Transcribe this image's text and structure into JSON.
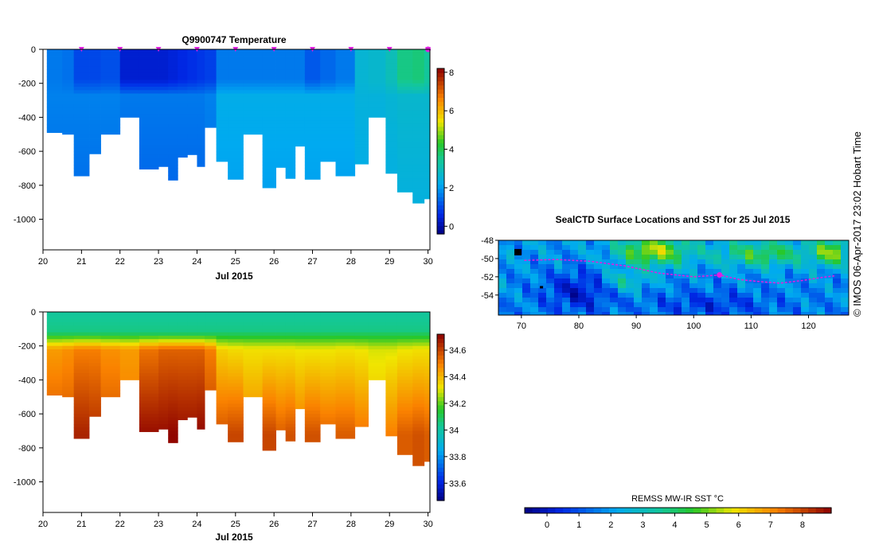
{
  "page": {
    "credit": "© IMOS 06-Apr-2017 23:02 Hobart Time"
  },
  "chart_data": [
    {
      "id": "temperature-section",
      "type": "heatmap",
      "title": "Q9900747  Temperature",
      "xlabel": "Jul 2015",
      "ylabel": "",
      "x_ticks": [
        "20",
        "21",
        "22",
        "23",
        "24",
        "25",
        "26",
        "27",
        "28",
        "29",
        "30"
      ],
      "xlim": [
        20,
        30.05
      ],
      "y_ticks": [
        "0",
        "-200",
        "-400",
        "-600",
        "-800",
        "-1000"
      ],
      "ylim": [
        -1180,
        0
      ],
      "profile_marker_days": [
        21,
        22,
        23,
        24,
        25,
        26,
        27,
        28,
        29,
        30
      ],
      "colorbar": {
        "min": -0.4,
        "max": 8.2,
        "ticks": [
          "0",
          "2",
          "4",
          "6",
          "8"
        ]
      },
      "profiles": [
        {
          "start": 20.1,
          "end": 20.5,
          "depth": 490,
          "v0": 1.6,
          "v600": 1.7
        },
        {
          "start": 20.5,
          "end": 20.8,
          "depth": 500,
          "v0": 1.5,
          "v600": 1.7
        },
        {
          "start": 20.8,
          "end": 21.2,
          "depth": 745,
          "v0": 1.0,
          "v600": 1.7
        },
        {
          "start": 21.2,
          "end": 21.5,
          "depth": 615,
          "v0": 1.0,
          "v600": 1.7
        },
        {
          "start": 21.5,
          "end": 22.0,
          "depth": 500,
          "v0": 1.1,
          "v600": 1.7
        },
        {
          "start": 22.0,
          "end": 22.5,
          "depth": 400,
          "v0": 0.4,
          "v600": 1.6
        },
        {
          "start": 22.5,
          "end": 23.0,
          "depth": 705,
          "v0": 0.4,
          "v600": 1.6
        },
        {
          "start": 23.0,
          "end": 23.25,
          "depth": 690,
          "v0": 0.4,
          "v600": 1.6
        },
        {
          "start": 23.25,
          "end": 23.5,
          "depth": 770,
          "v0": 0.5,
          "v600": 1.6
        },
        {
          "start": 23.5,
          "end": 23.75,
          "depth": 635,
          "v0": 0.6,
          "v600": 1.6
        },
        {
          "start": 23.75,
          "end": 24.0,
          "depth": 620,
          "v0": 0.7,
          "v600": 1.6
        },
        {
          "start": 24.0,
          "end": 24.2,
          "depth": 690,
          "v0": 0.8,
          "v600": 1.6
        },
        {
          "start": 24.2,
          "end": 24.5,
          "depth": 460,
          "v0": 0.9,
          "v600": 1.7
        },
        {
          "start": 24.5,
          "end": 24.8,
          "depth": 660,
          "v0": 1.6,
          "v600": 2.3
        },
        {
          "start": 24.8,
          "end": 25.2,
          "depth": 765,
          "v0": 1.6,
          "v600": 2.3
        },
        {
          "start": 25.2,
          "end": 25.7,
          "depth": 500,
          "v0": 1.6,
          "v600": 2.3
        },
        {
          "start": 25.7,
          "end": 26.05,
          "depth": 815,
          "v0": 1.6,
          "v600": 2.3
        },
        {
          "start": 26.05,
          "end": 26.3,
          "depth": 695,
          "v0": 1.6,
          "v600": 2.3
        },
        {
          "start": 26.3,
          "end": 26.55,
          "depth": 760,
          "v0": 1.6,
          "v600": 2.3
        },
        {
          "start": 26.55,
          "end": 26.8,
          "depth": 570,
          "v0": 1.6,
          "v600": 2.3
        },
        {
          "start": 26.8,
          "end": 27.2,
          "depth": 765,
          "v0": 1.2,
          "v600": 2.3
        },
        {
          "start": 27.2,
          "end": 27.6,
          "depth": 660,
          "v0": 1.4,
          "v600": 2.3
        },
        {
          "start": 27.6,
          "end": 28.1,
          "depth": 745,
          "v0": 1.6,
          "v600": 2.3
        },
        {
          "start": 28.1,
          "end": 28.45,
          "depth": 675,
          "v0": 2.6,
          "v600": 2.5
        },
        {
          "start": 28.45,
          "end": 28.9,
          "depth": 400,
          "v0": 2.7,
          "v600": 2.5
        },
        {
          "start": 28.9,
          "end": 29.2,
          "depth": 730,
          "v0": 3.0,
          "v600": 2.6
        },
        {
          "start": 29.2,
          "end": 29.6,
          "depth": 840,
          "v0": 3.6,
          "v600": 2.7
        },
        {
          "start": 29.6,
          "end": 29.9,
          "depth": 905,
          "v0": 3.7,
          "v600": 2.7
        },
        {
          "start": 29.9,
          "end": 30.05,
          "depth": 880,
          "v0": 3.4,
          "v600": 2.7
        }
      ]
    },
    {
      "id": "salinity-section",
      "type": "heatmap",
      "title": "",
      "xlabel": "Jul 2015",
      "ylabel": "",
      "x_ticks": [
        "20",
        "21",
        "22",
        "23",
        "24",
        "25",
        "26",
        "27",
        "28",
        "29",
        "30"
      ],
      "xlim": [
        20,
        30.05
      ],
      "y_ticks": [
        "0",
        "-200",
        "-400",
        "-600",
        "-800",
        "-1000"
      ],
      "ylim": [
        -1180,
        0
      ],
      "colorbar": {
        "min": 33.47,
        "max": 34.72,
        "ticks": [
          "33.6",
          "33.8",
          "34",
          "34.2",
          "34.4",
          "34.6"
        ]
      },
      "profiles": [
        {
          "start": 20.1,
          "end": 20.5,
          "depth": 490,
          "s_mid": 34.45,
          "s_deep": 34.58
        },
        {
          "start": 20.5,
          "end": 20.8,
          "depth": 500,
          "s_mid": 34.47,
          "s_deep": 34.58
        },
        {
          "start": 20.8,
          "end": 21.2,
          "depth": 745,
          "s_mid": 34.5,
          "s_deep": 34.66
        },
        {
          "start": 21.2,
          "end": 21.5,
          "depth": 615,
          "s_mid": 34.5,
          "s_deep": 34.64
        },
        {
          "start": 21.5,
          "end": 22.0,
          "depth": 500,
          "s_mid": 34.47,
          "s_deep": 34.58
        },
        {
          "start": 22.0,
          "end": 22.5,
          "depth": 400,
          "s_mid": 34.45,
          "s_deep": 34.52
        },
        {
          "start": 22.5,
          "end": 23.0,
          "depth": 705,
          "s_mid": 34.52,
          "s_deep": 34.7
        },
        {
          "start": 23.0,
          "end": 23.25,
          "depth": 690,
          "s_mid": 34.55,
          "s_deep": 34.7
        },
        {
          "start": 23.25,
          "end": 23.5,
          "depth": 770,
          "s_mid": 34.55,
          "s_deep": 34.71
        },
        {
          "start": 23.5,
          "end": 23.75,
          "depth": 635,
          "s_mid": 34.55,
          "s_deep": 34.7
        },
        {
          "start": 23.75,
          "end": 24.0,
          "depth": 620,
          "s_mid": 34.55,
          "s_deep": 34.7
        },
        {
          "start": 24.0,
          "end": 24.2,
          "depth": 690,
          "s_mid": 34.55,
          "s_deep": 34.71
        },
        {
          "start": 24.2,
          "end": 24.5,
          "depth": 460,
          "s_mid": 34.5,
          "s_deep": 34.62
        },
        {
          "start": 24.5,
          "end": 24.8,
          "depth": 660,
          "s_mid": 34.36,
          "s_deep": 34.58
        },
        {
          "start": 24.8,
          "end": 25.2,
          "depth": 765,
          "s_mid": 34.34,
          "s_deep": 34.6
        },
        {
          "start": 25.2,
          "end": 25.7,
          "depth": 500,
          "s_mid": 34.33,
          "s_deep": 34.5
        },
        {
          "start": 25.7,
          "end": 26.05,
          "depth": 815,
          "s_mid": 34.33,
          "s_deep": 34.6
        },
        {
          "start": 26.05,
          "end": 26.3,
          "depth": 695,
          "s_mid": 34.33,
          "s_deep": 34.56
        },
        {
          "start": 26.3,
          "end": 26.55,
          "depth": 760,
          "s_mid": 34.33,
          "s_deep": 34.58
        },
        {
          "start": 26.55,
          "end": 26.8,
          "depth": 570,
          "s_mid": 34.32,
          "s_deep": 34.52
        },
        {
          "start": 26.8,
          "end": 27.2,
          "depth": 765,
          "s_mid": 34.32,
          "s_deep": 34.58
        },
        {
          "start": 27.2,
          "end": 27.6,
          "depth": 660,
          "s_mid": 34.32,
          "s_deep": 34.55
        },
        {
          "start": 27.6,
          "end": 28.1,
          "depth": 745,
          "s_mid": 34.33,
          "s_deep": 34.56
        },
        {
          "start": 28.1,
          "end": 28.45,
          "depth": 675,
          "s_mid": 34.32,
          "s_deep": 34.52
        },
        {
          "start": 28.45,
          "end": 28.9,
          "depth": 400,
          "s_mid": 34.3,
          "s_deep": 34.42
        },
        {
          "start": 28.9,
          "end": 29.2,
          "depth": 730,
          "s_mid": 34.3,
          "s_deep": 34.5
        },
        {
          "start": 29.2,
          "end": 29.6,
          "depth": 840,
          "s_mid": 34.32,
          "s_deep": 34.56
        },
        {
          "start": 29.6,
          "end": 29.9,
          "depth": 905,
          "s_mid": 34.33,
          "s_deep": 34.58
        },
        {
          "start": 29.9,
          "end": 30.05,
          "depth": 880,
          "s_mid": 34.33,
          "s_deep": 34.56
        }
      ]
    },
    {
      "id": "sst-map",
      "type": "heatmap",
      "title": "SealCTD Surface Locations and SST for 25 Jul 2015",
      "xlabel": "",
      "ylabel": "",
      "x_ticks": [
        "70",
        "80",
        "90",
        "100",
        "110",
        "120"
      ],
      "xlim": [
        66,
        127
      ],
      "y_ticks": [
        "-48",
        "-50",
        "-52",
        "-54"
      ],
      "ylim": [
        -56.2,
        -48
      ],
      "colorbar": {
        "label": "REMSS MW-IR SST °C",
        "min": -0.7,
        "max": 8.9,
        "ticks": [
          "0",
          "1",
          "2",
          "3",
          "4",
          "5",
          "6",
          "7",
          "8"
        ]
      },
      "track": [
        [
          70.5,
          -50.2
        ],
        [
          76,
          -50.1
        ],
        [
          82,
          -50.3
        ],
        [
          88,
          -50.8
        ],
        [
          94,
          -51.6
        ],
        [
          100,
          -52
        ],
        [
          104.5,
          -51.8
        ],
        [
          108,
          -52.3
        ],
        [
          111,
          -52.5
        ],
        [
          115,
          -52.7
        ],
        [
          119,
          -52.4
        ],
        [
          122,
          -52.1
        ],
        [
          124.5,
          -51.9
        ]
      ],
      "current_position": [
        104.5,
        -51.8
      ]
    }
  ]
}
